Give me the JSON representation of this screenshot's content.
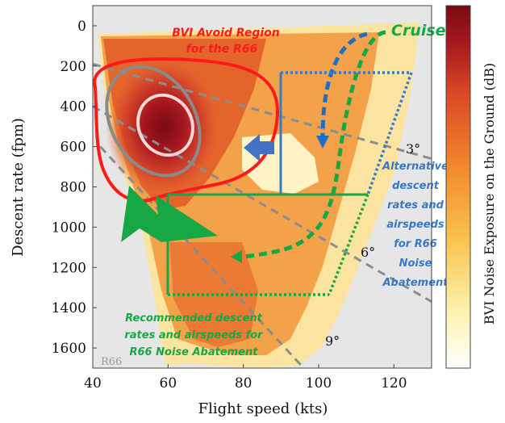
{
  "chart_data": {
    "type": "heatmap",
    "title": "",
    "xlabel": "Flight speed (kts)",
    "ylabel": "Descent rate (fpm)",
    "colorbar_label": "BVI Noise Exposure on the Ground (dB)",
    "xlim": [
      40,
      130
    ],
    "ylim": [
      1700,
      -100
    ],
    "x_ticks": [
      "40",
      "60",
      "80",
      "100",
      "120"
    ],
    "x_tick_values": [
      40,
      60,
      80,
      100,
      120
    ],
    "y_ticks": [
      "0",
      "200",
      "400",
      "600",
      "800",
      "1000",
      "1200",
      "1400",
      "1600"
    ],
    "y_tick_values": [
      0,
      200,
      400,
      600,
      800,
      1000,
      1200,
      1400,
      1600
    ],
    "grid": false,
    "watermark": "R66",
    "colormap": [
      "#ffffff",
      "#fdf1a8",
      "#f9c450",
      "#f28a2c",
      "#dc4a26",
      "#a5171e",
      "#7a0a14"
    ],
    "field_colors": {
      "background": "#e6e6e6",
      "low": "#fbe4a0",
      "mid": "#f3a24a",
      "high": "#e4652c",
      "peak": "#8e1116"
    },
    "glide_slopes": [
      {
        "label": "3°",
        "points": [
          [
            40,
            190
          ],
          [
            130,
            660
          ]
        ]
      },
      {
        "label": "6°",
        "points": [
          [
            40,
            400
          ],
          [
            130,
            1370
          ]
        ]
      },
      {
        "label": "9°",
        "points": [
          [
            42,
            600
          ],
          [
            96,
            1700
          ]
        ]
      }
    ],
    "glide_slope_color": "#8c8c8c",
    "annotations": {
      "avoid_title": "BVI Avoid Region",
      "avoid_sub": "for the R66",
      "cruise": "Cruise",
      "alt_lines": [
        "Alternative",
        "descent",
        "rates and",
        "airspeeds",
        "for R66",
        "Noise",
        "Abatement"
      ],
      "rec_lines": [
        "Recommended descent",
        "rates and airspeeds for",
        "R66 Noise Abatement"
      ]
    },
    "annotation_colors": {
      "avoid": "#ff1a1a",
      "recommended": "#17a845",
      "alternative": "#3a78c4",
      "cruise_path": "#1c6fc8"
    },
    "recommended_box": {
      "x": [
        60,
        112
      ],
      "y": [
        800,
        1300
      ]
    },
    "alternative_box": {
      "x": [
        90,
        124
      ],
      "y": [
        200,
        800
      ]
    }
  }
}
